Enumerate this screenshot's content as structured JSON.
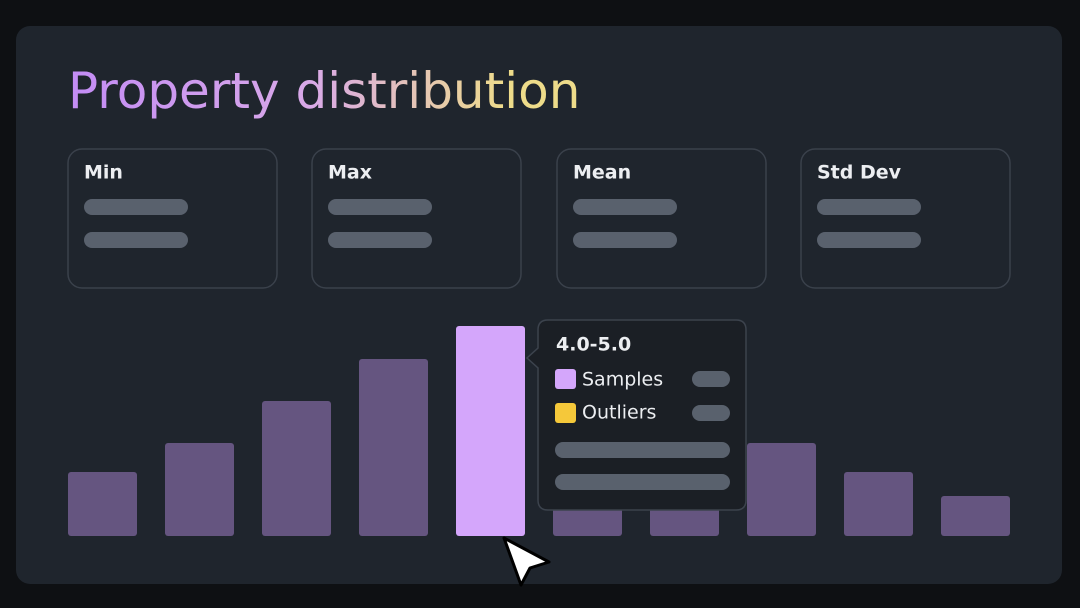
{
  "header": {
    "title": "Property distribution"
  },
  "cards": [
    {
      "label": "Min"
    },
    {
      "label": "Max"
    },
    {
      "label": "Mean"
    },
    {
      "label": "Std Dev"
    }
  ],
  "tooltip": {
    "range": "4.0-5.0",
    "items": [
      {
        "label": "Samples"
      },
      {
        "label": "Outliers"
      }
    ]
  }
}
